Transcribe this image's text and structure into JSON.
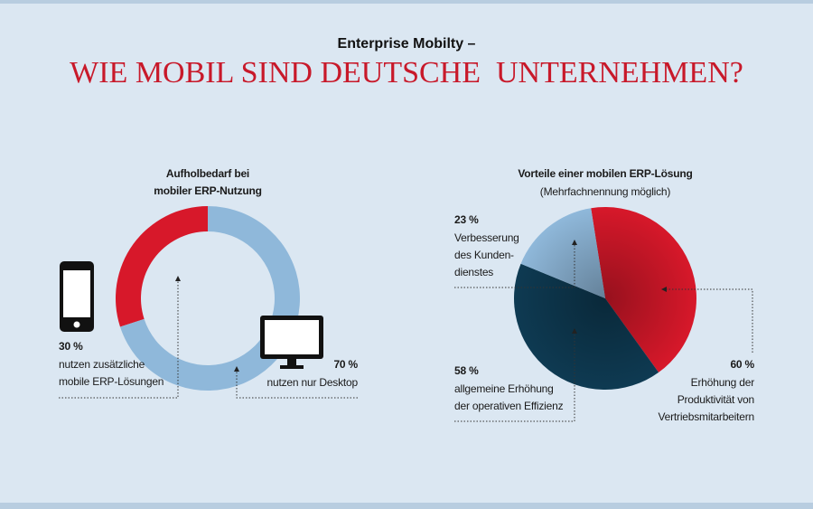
{
  "header": {
    "kicker": "Enterprise Mobilty –",
    "title": "WIE MOBIL SIND DEUTSCHE  UNTERNEHMEN?"
  },
  "chart_data": [
    {
      "type": "donut",
      "title": "Aufholbedarf bei\nmobiler ERP-Nutzung",
      "categories": [
        "nutzen zusätzliche\nmobile ERP-Lösungen",
        "nutzen nur Desktop"
      ],
      "values": [
        30,
        70
      ],
      "value_labels": [
        "30 %",
        "70 %"
      ],
      "colors": [
        "#d7182a",
        "#8fb8da"
      ]
    },
    {
      "type": "pie",
      "title": "Vorteile einer mobilen ERP-Lösung",
      "subtitle": "(Mehrfachnennung möglich)",
      "categories": [
        "Erhöhung der\nProduktivität von\nVertriebsmitarbeitern",
        "allgemeine Erhöhung\nder operativen Effizienz",
        "Verbesserung\ndes Kunden-\ndienstes"
      ],
      "values": [
        60,
        58,
        23
      ],
      "value_labels": [
        "60 %",
        "58 %",
        "23 %"
      ],
      "colors": [
        "#d7182a",
        "#0e3a52",
        "#8fb8da"
      ]
    }
  ]
}
